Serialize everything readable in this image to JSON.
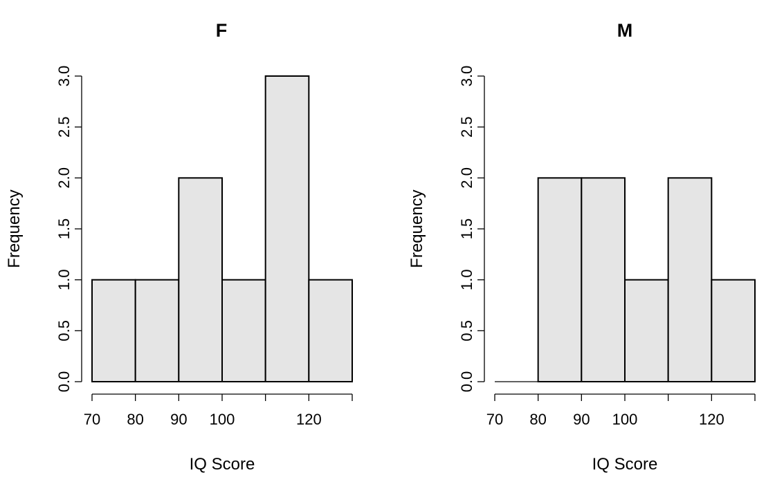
{
  "chart_data": [
    {
      "type": "bar",
      "title": "F",
      "xlabel": "IQ Score",
      "ylabel": "Frequency",
      "bin_edges": [
        70,
        80,
        90,
        100,
        110,
        120,
        130
      ],
      "values": [
        1,
        1,
        2,
        1,
        3,
        1
      ],
      "xticks": [
        70,
        80,
        90,
        100,
        120
      ],
      "yticks": [
        "0.0",
        "0.5",
        "1.0",
        "1.5",
        "2.0",
        "2.5",
        "3.0"
      ],
      "xlim": [
        70,
        130
      ],
      "ylim": [
        0,
        3
      ]
    },
    {
      "type": "bar",
      "title": "M",
      "xlabel": "IQ Score",
      "ylabel": "Frequency",
      "bin_edges": [
        70,
        80,
        90,
        100,
        110,
        120,
        130
      ],
      "values": [
        0,
        2,
        2,
        1,
        2,
        1
      ],
      "xticks": [
        70,
        80,
        90,
        100,
        120
      ],
      "yticks": [
        "0.0",
        "0.5",
        "1.0",
        "1.5",
        "2.0",
        "2.5",
        "3.0"
      ],
      "xlim": [
        70,
        130
      ],
      "ylim": [
        0,
        3
      ]
    }
  ]
}
